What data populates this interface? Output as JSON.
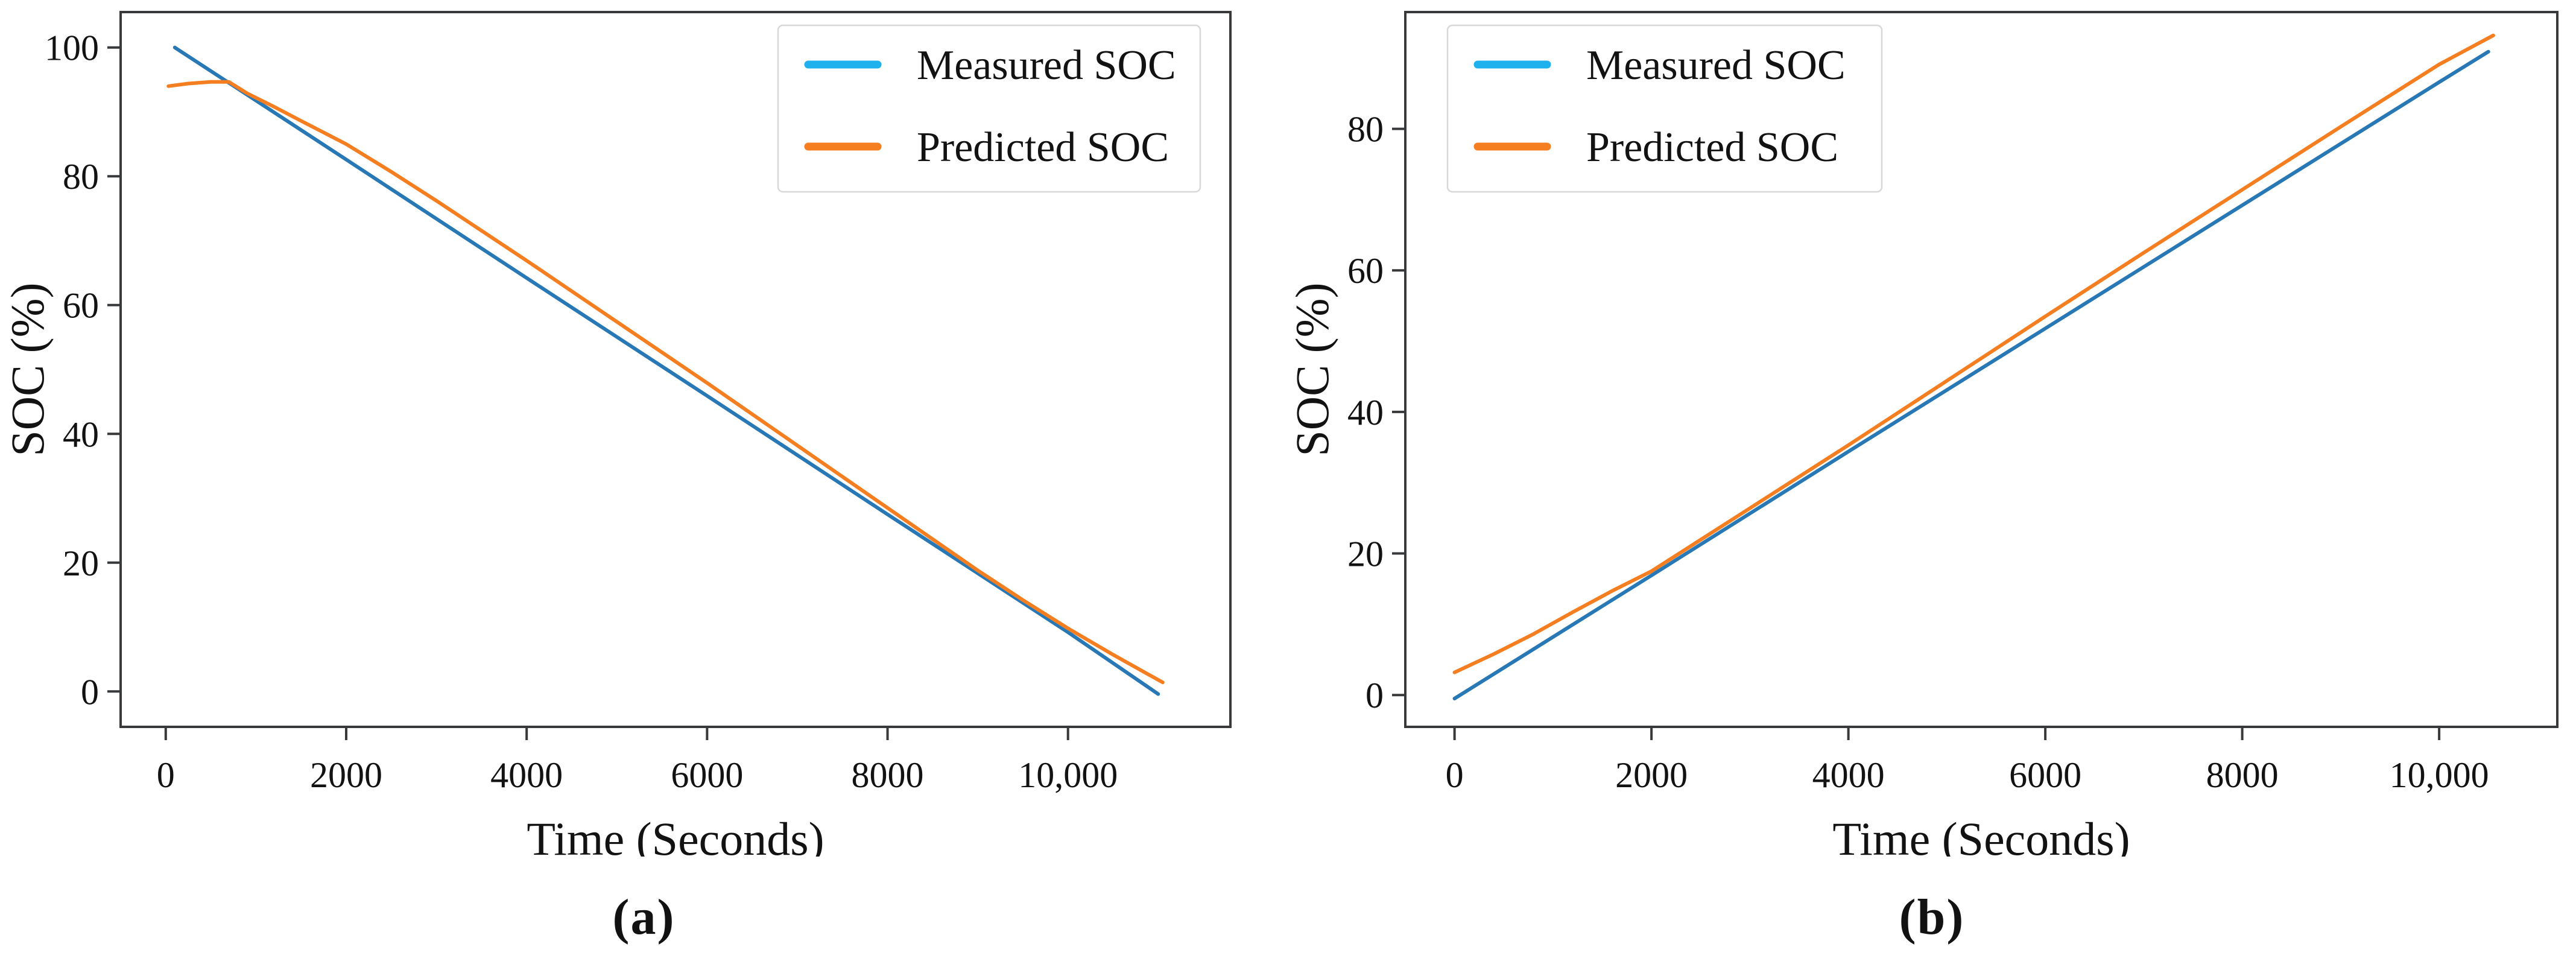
{
  "figure": {
    "panels": [
      {
        "caption": "(a)"
      },
      {
        "caption": "(b)"
      }
    ]
  },
  "colors": {
    "measured_line": "#2878b5",
    "predicted_line": "#f57e20",
    "measured_legend_swatch": "#1fb0ee",
    "predicted_legend_swatch": "#f57e20",
    "axis": "#37393b",
    "text": "#121212",
    "legend_frame": "#d8d8d8",
    "background": "#ffffff"
  },
  "chart_data": [
    {
      "id": "a",
      "type": "line",
      "title": "",
      "xlabel": "Time (Seconds)",
      "ylabel": "SOC (%)",
      "xlim": [
        -500,
        11800
      ],
      "ylim": [
        -5.5,
        105.5
      ],
      "grid": false,
      "x_ticks": [
        {
          "value": 0,
          "label": "0"
        },
        {
          "value": 2000,
          "label": "2000"
        },
        {
          "value": 4000,
          "label": "4000"
        },
        {
          "value": 6000,
          "label": "6000"
        },
        {
          "value": 8000,
          "label": "8000"
        },
        {
          "value": 10000,
          "label": "10,000"
        }
      ],
      "y_ticks": [
        {
          "value": 0,
          "label": "0"
        },
        {
          "value": 20,
          "label": "20"
        },
        {
          "value": 40,
          "label": "40"
        },
        {
          "value": 60,
          "label": "60"
        },
        {
          "value": 80,
          "label": "80"
        },
        {
          "value": 100,
          "label": "100"
        }
      ],
      "legend": {
        "position": "upper-right",
        "entries": [
          "Measured SOC",
          "Predicted SOC"
        ]
      },
      "series": [
        {
          "name": "Measured SOC",
          "role": "measured",
          "points": [
            [
              100,
              100
            ],
            [
              2000,
              82.6
            ],
            [
              4000,
              64.2
            ],
            [
              6000,
              45.9
            ],
            [
              8000,
              27.5
            ],
            [
              10000,
              9.2
            ],
            [
              11000,
              -0.4
            ]
          ]
        },
        {
          "name": "Predicted SOC",
          "role": "predicted",
          "points": [
            [
              30,
              94.0
            ],
            [
              250,
              94.4
            ],
            [
              500,
              94.65
            ],
            [
              700,
              94.65
            ],
            [
              900,
              92.9
            ],
            [
              1200,
              90.8
            ],
            [
              1500,
              88.6
            ],
            [
              2000,
              85.0
            ],
            [
              2500,
              80.7
            ],
            [
              3000,
              76.2
            ],
            [
              4000,
              66.9
            ],
            [
              5000,
              57.4
            ],
            [
              6000,
              47.9
            ],
            [
              7000,
              38.2
            ],
            [
              8000,
              28.5
            ],
            [
              9000,
              18.8
            ],
            [
              9500,
              14.2
            ],
            [
              10000,
              9.8
            ],
            [
              10500,
              5.7
            ],
            [
              11050,
              1.4
            ]
          ]
        }
      ]
    },
    {
      "id": "b",
      "type": "line",
      "title": "",
      "xlabel": "Time (Seconds)",
      "ylabel": "SOC (%)",
      "xlim": [
        -500,
        11200
      ],
      "ylim": [
        -4.5,
        96.5
      ],
      "grid": false,
      "x_ticks": [
        {
          "value": 0,
          "label": "0"
        },
        {
          "value": 2000,
          "label": "2000"
        },
        {
          "value": 4000,
          "label": "4000"
        },
        {
          "value": 6000,
          "label": "6000"
        },
        {
          "value": 8000,
          "label": "8000"
        },
        {
          "value": 10000,
          "label": "10,000"
        }
      ],
      "y_ticks": [
        {
          "value": 0,
          "label": "0"
        },
        {
          "value": 20,
          "label": "20"
        },
        {
          "value": 40,
          "label": "40"
        },
        {
          "value": 60,
          "label": "60"
        },
        {
          "value": 80,
          "label": "80"
        }
      ],
      "legend": {
        "position": "upper-left",
        "entries": [
          "Measured SOC",
          "Predicted SOC"
        ]
      },
      "series": [
        {
          "name": "Measured SOC",
          "role": "measured",
          "points": [
            [
              0,
              -0.5
            ],
            [
              2000,
              16.9
            ],
            [
              4000,
              34.4
            ],
            [
              6000,
              51.8
            ],
            [
              8000,
              69.2
            ],
            [
              10000,
              86.6
            ],
            [
              10500,
              90.9
            ]
          ]
        },
        {
          "name": "Predicted SOC",
          "role": "predicted",
          "points": [
            [
              0,
              3.2
            ],
            [
              400,
              5.8
            ],
            [
              800,
              8.6
            ],
            [
              1200,
              11.7
            ],
            [
              1600,
              14.7
            ],
            [
              2000,
              17.5
            ],
            [
              3000,
              26.4
            ],
            [
              4000,
              35.3
            ],
            [
              5000,
              44.4
            ],
            [
              6000,
              53.5
            ],
            [
              7000,
              62.5
            ],
            [
              8000,
              71.4
            ],
            [
              9000,
              80.3
            ],
            [
              10000,
              89.1
            ],
            [
              10550,
              93.2
            ]
          ]
        }
      ]
    }
  ]
}
